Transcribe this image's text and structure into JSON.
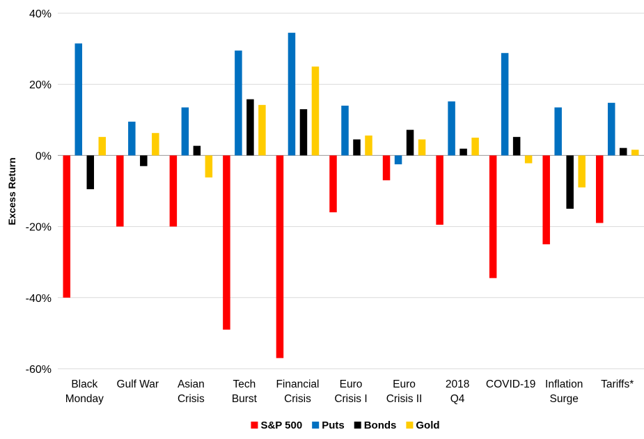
{
  "chart_data": {
    "type": "bar",
    "title": "",
    "xlabel": "",
    "ylabel": "Excess Return",
    "ylim": [
      -0.6,
      0.4
    ],
    "yticks": [
      -0.6,
      -0.4,
      -0.2,
      0,
      0.2,
      0.4
    ],
    "ytick_labels": [
      "-60%",
      "-40%",
      "-20%",
      "0%",
      "20%",
      "40%"
    ],
    "grid": "horizontal",
    "legend_position": "bottom",
    "categories": [
      [
        "Black",
        "Monday"
      ],
      [
        "Gulf War"
      ],
      [
        "Asian",
        "Crisis"
      ],
      [
        "Tech",
        "Burst"
      ],
      [
        "Financial",
        "Crisis"
      ],
      [
        "Euro",
        "Crisis I"
      ],
      [
        "Euro",
        "Crisis II"
      ],
      [
        "2018",
        "Q4"
      ],
      [
        "COVID-19"
      ],
      [
        "Inflation",
        "Surge"
      ],
      [
        "Tariffs*"
      ]
    ],
    "series": [
      {
        "name": "S&P 500",
        "color": "#ff0000",
        "values": [
          -0.4,
          -0.2,
          -0.2,
          -0.49,
          -0.57,
          -0.16,
          -0.07,
          -0.195,
          -0.345,
          -0.25,
          -0.19
        ]
      },
      {
        "name": "Puts",
        "color": "#0070c0",
        "values": [
          0.315,
          0.095,
          0.135,
          0.295,
          0.345,
          0.14,
          -0.025,
          0.152,
          0.288,
          0.135,
          0.148
        ]
      },
      {
        "name": "Bonds",
        "color": "#000000",
        "values": [
          -0.095,
          -0.03,
          0.027,
          0.158,
          0.13,
          0.045,
          0.072,
          0.019,
          0.052,
          -0.15,
          0.021
        ]
      },
      {
        "name": "Gold",
        "color": "#ffcc00",
        "values": [
          0.052,
          0.063,
          -0.062,
          0.142,
          0.25,
          0.056,
          0.045,
          0.05,
          -0.022,
          -0.09,
          0.016
        ]
      }
    ]
  }
}
